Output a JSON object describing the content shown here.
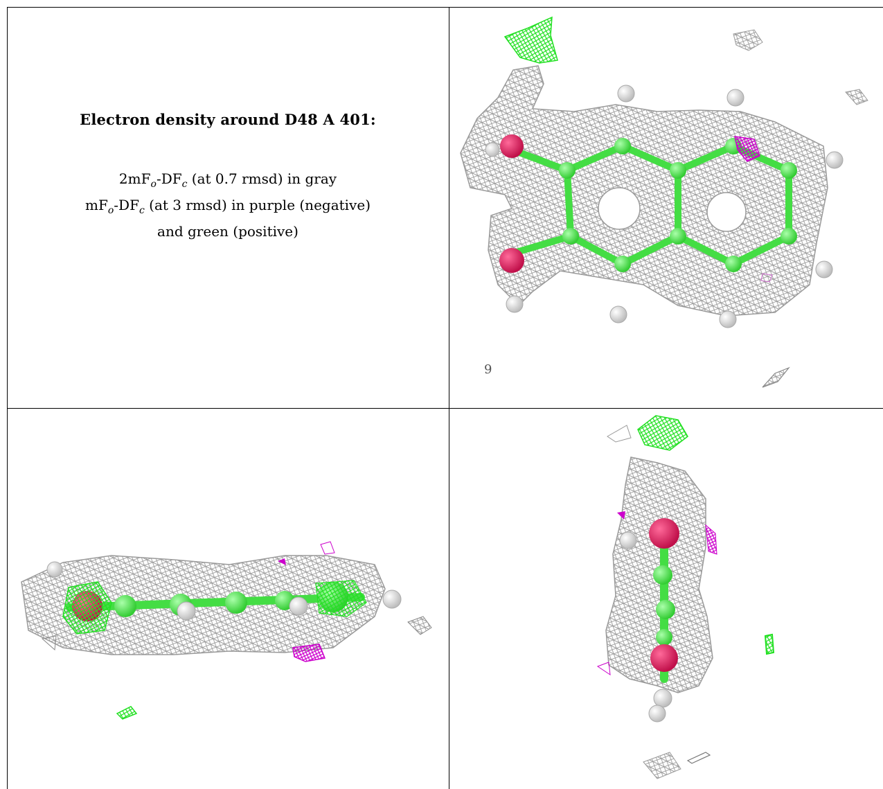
{
  "caption": {
    "title": "Electron density around D48 A 401:",
    "line1": {
      "a": "2mF",
      "b": "o",
      "c": "-DF",
      "d": "c",
      "e": " (at 0.7 rmsd) in gray"
    },
    "line2": {
      "a": "mF",
      "b": "o",
      "c": "-DF",
      "d": "c",
      "e": " (at 3 rmsd) in purple (negative)"
    },
    "line3": "and green (positive)"
  },
  "panels": {
    "top_right_label": "9"
  },
  "colors": {
    "mesh_gray": "#9a9a9a",
    "positive_green": "#22e022",
    "negative_purple": "#cc00cc",
    "oxygen_red": "#e0155a",
    "carbon_green": "#55ee55",
    "hydrogen_white": "#f2f2f2"
  }
}
